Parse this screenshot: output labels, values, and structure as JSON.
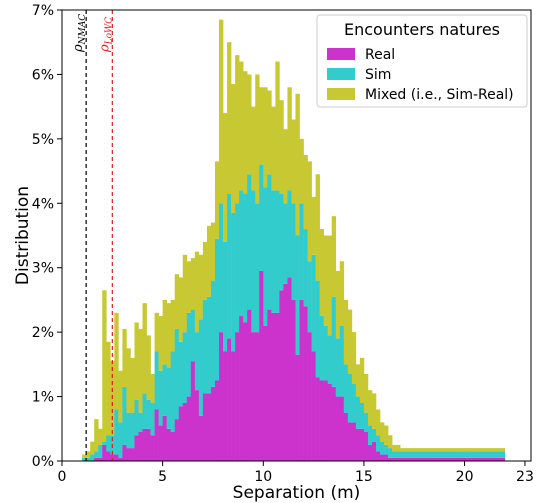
{
  "chart_data": {
    "type": "bar",
    "stacked": true,
    "xlabel": "Separation (m)",
    "ylabel": "Distribution",
    "xlim": [
      0,
      23.3
    ],
    "ylim": [
      0,
      7
    ],
    "xticks": [
      0,
      5,
      10,
      15,
      20,
      23
    ],
    "yticks": [
      0,
      1,
      2,
      3,
      4,
      5,
      6,
      7
    ],
    "ytick_labels": [
      "0%",
      "1%",
      "2%",
      "3%",
      "4%",
      "5%",
      "6%",
      "7%"
    ],
    "grid": false,
    "bin_width": 0.2,
    "x_start": 1.0,
    "legend": {
      "title": "Encounters natures",
      "placement": "top-right",
      "entries": [
        "Real",
        "Sim",
        "Mixed (i.e., Sim-Real)"
      ]
    },
    "vlines": [
      {
        "x": 1.2,
        "label": "ρ_NMAC",
        "label_main": "ρ",
        "label_sub": "NMAC",
        "color": "#000000",
        "style": "dashed"
      },
      {
        "x": 2.5,
        "label": "ρ_LoWC",
        "label_main": "ρ",
        "label_sub": "LoWC",
        "color": "#e41a1c",
        "style": "dashed"
      }
    ],
    "series": [
      {
        "name": "Real",
        "color": "#cc33cc",
        "values": [
          0,
          0,
          0,
          0.05,
          0.05,
          0.25,
          0.15,
          0.1,
          0.1,
          0.05,
          0.25,
          0.2,
          0.2,
          0.4,
          0.45,
          0.5,
          0.5,
          0.4,
          0.8,
          0.55,
          0.7,
          0.5,
          0.45,
          0.65,
          0.85,
          0.9,
          1.0,
          1.55,
          1.1,
          0.7,
          1.05,
          1.05,
          1.15,
          1.25,
          2.0,
          1.7,
          1.9,
          1.7,
          2.0,
          2.25,
          2.15,
          2.35,
          2.0,
          2.0,
          2.95,
          2.1,
          2.35,
          2.3,
          2.3,
          2.65,
          2.75,
          2.85,
          2.5,
          1.65,
          2.5,
          2.4,
          2.0,
          1.7,
          1.3,
          1.25,
          1.25,
          1.2,
          1.15,
          1.0,
          1.0,
          0.75,
          0.6,
          0.6,
          0.5,
          0.5,
          0.45,
          0.25,
          0.3,
          0.15,
          0.1,
          0.1,
          0.05,
          0.05,
          0.05,
          0.05,
          0.05,
          0.05,
          0.05,
          0.05,
          0.05,
          0.05,
          0.05,
          0.05,
          0.05,
          0.05,
          0.05,
          0.05,
          0.05,
          0.05,
          0.05,
          0.05,
          0.05,
          0.05,
          0.05,
          0.05,
          0.05,
          0.05,
          0.05,
          0.05,
          0.05
        ]
      },
      {
        "name": "Sim",
        "color": "#33cccc",
        "values": [
          0.05,
          0.05,
          0.1,
          0.1,
          0.2,
          0.05,
          0.25,
          0.3,
          0.7,
          0.55,
          0.9,
          0.55,
          0.55,
          0.55,
          0.3,
          0.55,
          0.45,
          0.5,
          0.9,
          0.85,
          0.8,
          0.95,
          1.25,
          1.4,
          1.0,
          1.1,
          1.3,
          0.8,
          0.9,
          1.5,
          1.45,
          1.5,
          1.65,
          2.2,
          2.0,
          1.7,
          2.25,
          2.15,
          2.0,
          1.95,
          2.0,
          2.1,
          2.2,
          2.0,
          1.65,
          2.15,
          2.1,
          1.9,
          1.9,
          1.5,
          1.25,
          1.35,
          1.5,
          1.85,
          1.5,
          1.2,
          1.1,
          1.5,
          1.5,
          1.0,
          0.85,
          0.75,
          1.4,
          0.9,
          1.1,
          0.75,
          0.75,
          0.6,
          0.5,
          0.4,
          0.3,
          0.3,
          0.2,
          0.25,
          0.2,
          0.15,
          0.15,
          0.1,
          0.1,
          0.1,
          0.1,
          0.1,
          0.1,
          0.1,
          0.1,
          0.1,
          0.1,
          0.1,
          0.1,
          0.1,
          0.1,
          0.1,
          0.1,
          0.1,
          0.1,
          0.1,
          0.1,
          0.1,
          0.1,
          0.1,
          0.1,
          0.1,
          0.1,
          0.1,
          0.1
        ]
      },
      {
        "name": "Mixed (i.e., Sim-Real)",
        "color": "#c8c832",
        "values": [
          0.05,
          0.1,
          0.2,
          0.5,
          0.25,
          2.35,
          1.45,
          1.15,
          1.5,
          0.8,
          0.9,
          1.0,
          0.85,
          1.2,
          1.3,
          1.4,
          1.0,
          0.45,
          0.6,
          0.85,
          1.0,
          1.0,
          0.8,
          0.85,
          1.0,
          1.2,
          0.8,
          0.8,
          1.25,
          1.0,
          0.9,
          1.1,
          0.9,
          1.2,
          2.85,
          2.0,
          2.35,
          2.0,
          2.3,
          2.0,
          1.9,
          1.55,
          1.3,
          2.0,
          1.2,
          1.55,
          1.3,
          1.3,
          2.0,
          1.45,
          1.15,
          1.6,
          1.3,
          2.2,
          1.0,
          1.15,
          1.55,
          0.9,
          1.65,
          1.35,
          1.4,
          1.55,
          1.25,
          1.05,
          1.0,
          1.0,
          1.0,
          0.8,
          0.5,
          0.7,
          0.6,
          0.55,
          0.55,
          0.4,
          0.3,
          0.3,
          0.2,
          0.1,
          0.1,
          0.05,
          0.05,
          0.05,
          0.05,
          0.05,
          0.05,
          0.05,
          0.05,
          0.05,
          0.05,
          0.05,
          0.05,
          0.05,
          0.05,
          0.05,
          0.05,
          0.05,
          0.05,
          0.05,
          0.05,
          0.05,
          0.05,
          0.05,
          0.05,
          0.05,
          0.05
        ]
      }
    ]
  }
}
